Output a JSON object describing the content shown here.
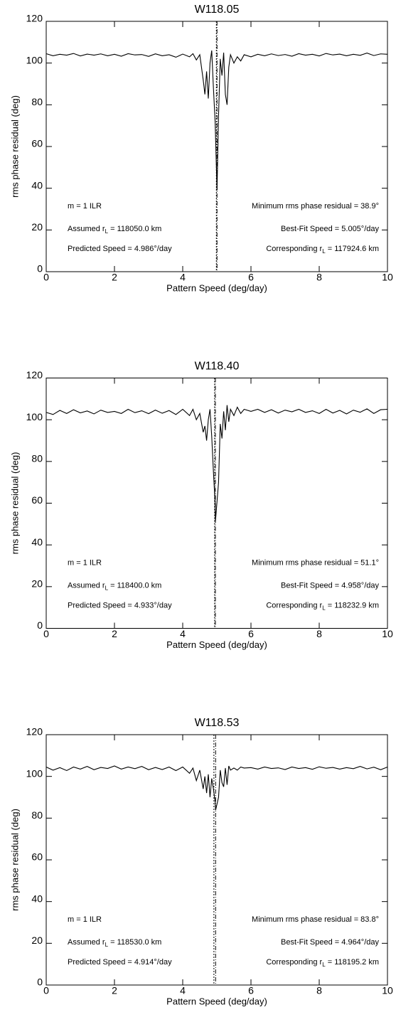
{
  "chart_data": [
    {
      "type": "line",
      "title": "W118.05",
      "x_label": "Pattern Speed (deg/day)",
      "y_label": "rms phase residual (deg)",
      "xlim": [
        0,
        10
      ],
      "ylim": [
        0,
        120
      ],
      "xticks": [
        0,
        2,
        4,
        6,
        8,
        10
      ],
      "yticks": [
        0,
        20,
        40,
        60,
        80,
        100,
        120
      ],
      "color": "#000000",
      "predicted_speed": 4.986,
      "best_fit_speed": 5.005,
      "annotations": {
        "left": [
          [
            "m =  1 ILR"
          ],
          [
            "Assumed r",
            "L",
            " = 118050.0 km"
          ],
          [
            "Predicted Speed =   4.986°/day"
          ]
        ],
        "right": [
          [
            "Minimum rms phase residual =  38.9°"
          ],
          [
            "Best-Fit Speed =   5.005°/day"
          ],
          [
            "Corresponding r",
            "L",
            " = 117924.6 km"
          ]
        ]
      },
      "x": [
        0,
        0.2,
        0.4,
        0.6,
        0.8,
        1,
        1.2,
        1.4,
        1.6,
        1.8,
        2,
        2.2,
        2.4,
        2.6,
        2.8,
        3,
        3.2,
        3.4,
        3.6,
        3.8,
        4,
        4.2,
        4.3,
        4.4,
        4.5,
        4.6,
        4.65,
        4.7,
        4.75,
        4.8,
        4.85,
        4.9,
        4.95,
        5.005,
        5.05,
        5.1,
        5.15,
        5.2,
        5.25,
        5.3,
        5.35,
        5.4,
        5.5,
        5.6,
        5.7,
        5.8,
        6,
        6.2,
        6.4,
        6.6,
        6.8,
        7,
        7.2,
        7.4,
        7.6,
        7.8,
        8,
        8.2,
        8.4,
        8.6,
        8.8,
        9,
        9.2,
        9.4,
        9.6,
        9.8,
        10
      ],
      "values": [
        104.5,
        103.5,
        104.2,
        103.8,
        104.6,
        103.4,
        104.3,
        103.8,
        104.4,
        103.5,
        104.2,
        103.3,
        104.5,
        103.9,
        104.1,
        103.2,
        104.4,
        103.5,
        104,
        102.8,
        104.3,
        103,
        104.5,
        101.5,
        104,
        92,
        85,
        96,
        83,
        100,
        106,
        88,
        72,
        38.9,
        75,
        102,
        94,
        105,
        85,
        80,
        98,
        104,
        100,
        103,
        101,
        104,
        103,
        104.2,
        103.5,
        104.4,
        103.6,
        104.1,
        103.3,
        104.5,
        103.8,
        104.2,
        103.4,
        104.6,
        103.9,
        104.3,
        103.5,
        104.2,
        103.7,
        104.8,
        103.6,
        104.4,
        104.2
      ]
    },
    {
      "type": "line",
      "title": "W118.40",
      "x_label": "Pattern Speed (deg/day)",
      "y_label": "rms phase residual (deg)",
      "xlim": [
        0,
        10
      ],
      "ylim": [
        0,
        120
      ],
      "xticks": [
        0,
        2,
        4,
        6,
        8,
        10
      ],
      "yticks": [
        0,
        20,
        40,
        60,
        80,
        100,
        120
      ],
      "color": "#000000",
      "predicted_speed": 4.933,
      "best_fit_speed": 4.958,
      "annotations": {
        "left": [
          [
            "m =  1 ILR"
          ],
          [
            "Assumed r",
            "L",
            " = 118400.0 km"
          ],
          [
            "Predicted Speed =   4.933°/day"
          ]
        ],
        "right": [
          [
            "Minimum rms phase residual =  51.1°"
          ],
          [
            "Best-Fit Speed =   4.958°/day"
          ],
          [
            "Corresponding r",
            "L",
            " = 118232.9 km"
          ]
        ]
      },
      "x": [
        0,
        0.2,
        0.4,
        0.6,
        0.8,
        1,
        1.2,
        1.4,
        1.6,
        1.8,
        2,
        2.2,
        2.4,
        2.6,
        2.8,
        3,
        3.2,
        3.4,
        3.6,
        3.8,
        4,
        4.2,
        4.3,
        4.4,
        4.5,
        4.6,
        4.65,
        4.7,
        4.75,
        4.8,
        4.85,
        4.9,
        4.95,
        4.958,
        5.05,
        5.1,
        5.15,
        5.2,
        5.25,
        5.3,
        5.35,
        5.4,
        5.5,
        5.6,
        5.7,
        5.8,
        6,
        6.2,
        6.4,
        6.6,
        6.8,
        7,
        7.2,
        7.4,
        7.6,
        7.8,
        8,
        8.2,
        8.4,
        8.6,
        8.8,
        9,
        9.2,
        9.4,
        9.6,
        9.8,
        10
      ],
      "values": [
        103.5,
        102.5,
        104.5,
        103,
        104.8,
        103.3,
        104.2,
        102.8,
        104.6,
        103.5,
        104,
        103,
        105,
        103.4,
        104.3,
        102.9,
        104.6,
        103.1,
        104.4,
        102.5,
        105,
        102,
        105,
        100,
        103,
        94,
        97,
        90,
        100,
        105,
        92,
        75,
        60,
        51.1,
        70,
        98,
        91,
        104,
        95,
        107,
        99,
        105,
        102,
        106,
        103,
        105,
        104,
        105,
        103.5,
        104.8,
        103.2,
        104.6,
        103.8,
        105,
        103.5,
        104.3,
        103,
        105,
        103.2,
        104.5,
        102.8,
        104.6,
        103.6,
        105.2,
        103,
        104.8,
        105
      ]
    },
    {
      "type": "line",
      "title": "W118.53",
      "x_label": "Pattern Speed (deg/day)",
      "y_label": "rms phase residual (deg)",
      "xlim": [
        0,
        10
      ],
      "ylim": [
        0,
        120
      ],
      "xticks": [
        0,
        2,
        4,
        6,
        8,
        10
      ],
      "yticks": [
        0,
        20,
        40,
        60,
        80,
        100,
        120
      ],
      "color": "#000000",
      "predicted_speed": 4.914,
      "best_fit_speed": 4.964,
      "annotations": {
        "left": [
          [
            "m =  1 ILR"
          ],
          [
            "Assumed r",
            "L",
            " = 118530.0 km"
          ],
          [
            "Predicted Speed =   4.914°/day"
          ]
        ],
        "right": [
          [
            "Minimum rms phase residual =  83.8°"
          ],
          [
            "Best-Fit Speed =   4.964°/day"
          ],
          [
            "Corresponding r",
            "L",
            " = 118195.2 km"
          ]
        ]
      },
      "x": [
        0,
        0.2,
        0.4,
        0.6,
        0.8,
        1,
        1.2,
        1.4,
        1.6,
        1.8,
        2,
        2.2,
        2.4,
        2.6,
        2.8,
        3,
        3.2,
        3.4,
        3.6,
        3.8,
        4,
        4.2,
        4.3,
        4.4,
        4.5,
        4.6,
        4.65,
        4.7,
        4.75,
        4.8,
        4.85,
        4.9,
        4.95,
        4.964,
        5.05,
        5.1,
        5.15,
        5.2,
        5.25,
        5.3,
        5.35,
        5.4,
        5.5,
        5.6,
        5.7,
        5.8,
        6,
        6.2,
        6.4,
        6.6,
        6.8,
        7,
        7.2,
        7.4,
        7.6,
        7.8,
        8,
        8.2,
        8.4,
        8.6,
        8.8,
        9,
        9.2,
        9.4,
        9.6,
        9.8,
        10
      ],
      "values": [
        104.5,
        103,
        104.2,
        102.8,
        104.5,
        103.5,
        104.8,
        103.2,
        104.3,
        103.8,
        105,
        103.5,
        104.5,
        103.7,
        104.8,
        103.2,
        104.3,
        103.3,
        104.5,
        102.8,
        104.5,
        101.5,
        104,
        98,
        103,
        94,
        100,
        92,
        101,
        90,
        99,
        94,
        88,
        83.8,
        90,
        103,
        97,
        95,
        104,
        96,
        105,
        103,
        104,
        103,
        104.5,
        104,
        104.2,
        103.5,
        104.5,
        103.8,
        104.1,
        103.3,
        104.5,
        103.8,
        104.2,
        103.4,
        104.6,
        103.9,
        104.3,
        103.5,
        104.2,
        103.7,
        104.8,
        103.6,
        104.4,
        103.2,
        104.5
      ]
    }
  ]
}
